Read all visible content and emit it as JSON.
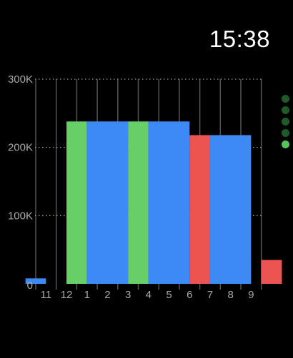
{
  "status_bar": {
    "time": "15:38"
  },
  "page_indicator": {
    "count": 5,
    "active_index": 4,
    "active_color": "#54c45e",
    "inactive_color": "#1f5a2a"
  },
  "colors": {
    "blue": "#3d8af7",
    "green": "#68ce67",
    "red": "#ec5451",
    "gridline": "#555555",
    "axis_text": "#a8a8a8"
  },
  "chart_data": {
    "type": "bar",
    "ylim": [
      0,
      300000
    ],
    "yticks": [
      {
        "value": 0,
        "label": "0"
      },
      {
        "value": 100000,
        "label": "100K"
      },
      {
        "value": 200000,
        "label": "200K"
      },
      {
        "value": 300000,
        "label": "300K"
      }
    ],
    "hour_ticks": [
      "11",
      "12",
      "1",
      "2",
      "3",
      "4",
      "5",
      "6",
      "7",
      "8",
      "9"
    ],
    "bars": [
      {
        "start": -0.5,
        "end": 0.5,
        "value": 8000,
        "color": "blue"
      },
      {
        "start": 1.5,
        "end": 2.5,
        "value": 238000,
        "color": "green"
      },
      {
        "start": 2.5,
        "end": 4.5,
        "value": 238000,
        "color": "blue"
      },
      {
        "start": 4.5,
        "end": 5.5,
        "value": 238000,
        "color": "green"
      },
      {
        "start": 5.5,
        "end": 7.5,
        "value": 238000,
        "color": "blue"
      },
      {
        "start": 7.5,
        "end": 8.5,
        "value": 218000,
        "color": "red"
      },
      {
        "start": 8.5,
        "end": 10.5,
        "value": 218000,
        "color": "blue"
      },
      {
        "start": 11.0,
        "end": 12.0,
        "value": 35000,
        "color": "red"
      }
    ]
  }
}
